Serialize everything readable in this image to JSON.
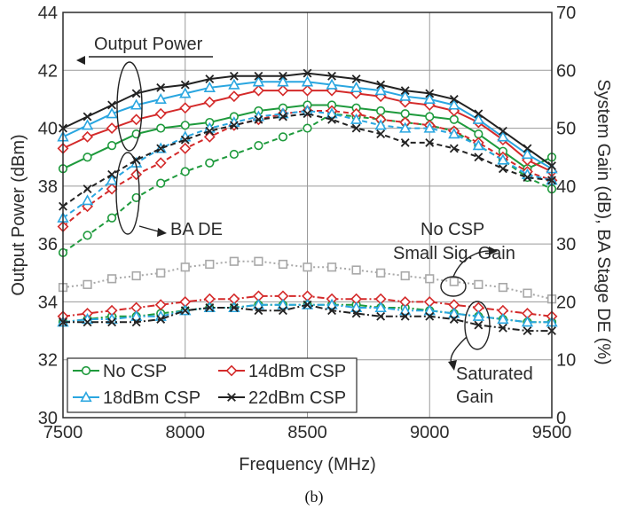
{
  "chart_data": {
    "type": "line",
    "caption": "(b)",
    "xlabel": "Frequency (MHz)",
    "ylabel_left": "Output Power (dBm)",
    "ylabel_right": "System Gain (dB), BA Stage  DE (%)",
    "xlim": [
      7500,
      9500
    ],
    "ylim_left": [
      30,
      44
    ],
    "ylim_right": [
      0,
      70
    ],
    "x_ticks": [
      7500,
      8000,
      8500,
      9000,
      9500
    ],
    "y_ticks_left": [
      30,
      32,
      34,
      36,
      38,
      40,
      42,
      44
    ],
    "y_ticks_right": [
      0,
      10,
      20,
      30,
      40,
      50,
      60,
      70
    ],
    "grid": true,
    "x": [
      7500,
      7600,
      7700,
      7800,
      7900,
      8000,
      8100,
      8200,
      8300,
      8400,
      8500,
      8600,
      8700,
      8800,
      8900,
      9000,
      9100,
      9200,
      9300,
      9400,
      9500
    ],
    "colors": {
      "no_csp": "#1e9a3c",
      "csp14": "#d42a2a",
      "csp18": "#2aa6e0",
      "csp22": "#222222",
      "small_sig": "#a8a8a8"
    },
    "series": [
      {
        "name": "No CSP",
        "group": "output_power",
        "axis": "left",
        "style": "solid",
        "color_key": "no_csp",
        "marker": "circle",
        "values": [
          38.6,
          39.0,
          39.4,
          39.8,
          40.0,
          40.1,
          40.2,
          40.4,
          40.6,
          40.7,
          40.8,
          40.8,
          40.7,
          40.6,
          40.5,
          40.4,
          40.3,
          39.8,
          39.2,
          38.6,
          39.0
        ]
      },
      {
        "name": "14dBm CSP",
        "group": "output_power",
        "axis": "left",
        "style": "solid",
        "color_key": "csp14",
        "marker": "diamond",
        "values": [
          39.3,
          39.7,
          40.0,
          40.3,
          40.5,
          40.7,
          40.9,
          41.1,
          41.3,
          41.3,
          41.3,
          41.3,
          41.2,
          41.1,
          40.9,
          40.8,
          40.6,
          40.2,
          39.6,
          38.9,
          38.5
        ]
      },
      {
        "name": "18dBm CSP",
        "group": "output_power",
        "axis": "left",
        "style": "solid",
        "color_key": "csp18",
        "marker": "triangle",
        "values": [
          39.7,
          40.1,
          40.5,
          40.8,
          41.0,
          41.2,
          41.4,
          41.5,
          41.6,
          41.6,
          41.6,
          41.5,
          41.4,
          41.3,
          41.1,
          41.0,
          40.8,
          40.3,
          39.7,
          39.1,
          38.6
        ]
      },
      {
        "name": "22dBm CSP",
        "group": "output_power",
        "axis": "left",
        "style": "solid",
        "color_key": "csp22",
        "marker": "x",
        "values": [
          40.0,
          40.4,
          40.8,
          41.2,
          41.4,
          41.5,
          41.7,
          41.8,
          41.8,
          41.8,
          41.9,
          41.8,
          41.7,
          41.5,
          41.3,
          41.2,
          41.0,
          40.5,
          39.9,
          39.3,
          38.7
        ]
      },
      {
        "name": "No CSP",
        "group": "ba_de",
        "axis": "right",
        "style": "dash",
        "color_key": "no_csp",
        "marker": "circle",
        "values": [
          28.5,
          31.5,
          34.5,
          38.0,
          40.5,
          42.5,
          44.0,
          45.5,
          47.0,
          48.5,
          50.0,
          52.5,
          52.0,
          51.5,
          51.0,
          50.5,
          49.5,
          47.0,
          44.5,
          41.5,
          39.5
        ]
      },
      {
        "name": "14dBm CSP",
        "group": "ba_de",
        "axis": "right",
        "style": "dash",
        "color_key": "csp14",
        "marker": "diamond",
        "values": [
          33.0,
          36.5,
          39.5,
          42.0,
          44.0,
          46.5,
          48.5,
          50.5,
          51.5,
          52.5,
          53.0,
          53.0,
          52.5,
          51.5,
          51.0,
          50.5,
          49.5,
          47.5,
          45.0,
          42.5,
          41.0
        ]
      },
      {
        "name": "18dBm CSP",
        "group": "ba_de",
        "axis": "right",
        "style": "dash",
        "color_key": "csp18",
        "marker": "triangle",
        "values": [
          34.5,
          37.5,
          41.0,
          44.0,
          46.5,
          48.5,
          50.0,
          51.0,
          52.0,
          52.5,
          53.0,
          52.5,
          51.5,
          50.5,
          50.0,
          50.0,
          49.0,
          47.0,
          44.5,
          42.0,
          41.0
        ]
      },
      {
        "name": "22dBm CSP",
        "group": "ba_de",
        "axis": "right",
        "style": "dash",
        "color_key": "csp22",
        "marker": "x",
        "values": [
          36.5,
          39.5,
          42.0,
          44.5,
          46.5,
          48.0,
          49.5,
          50.5,
          51.5,
          52.0,
          52.5,
          51.5,
          50.0,
          49.0,
          47.5,
          47.5,
          46.5,
          45.0,
          43.0,
          41.5,
          41.0
        ]
      },
      {
        "name": "No CSP",
        "group": "sat_gain",
        "axis": "right",
        "style": "dashdot",
        "color_key": "no_csp",
        "marker": "circle",
        "values": [
          16.5,
          17.0,
          17.5,
          17.5,
          18.0,
          18.5,
          19.0,
          19.0,
          19.5,
          19.5,
          19.5,
          19.5,
          19.5,
          19.0,
          19.0,
          18.5,
          18.0,
          17.5,
          17.0,
          16.5,
          16.5
        ]
      },
      {
        "name": "14dBm CSP",
        "group": "sat_gain",
        "axis": "right",
        "style": "dashdot",
        "color_key": "csp14",
        "marker": "diamond",
        "values": [
          17.5,
          18.0,
          18.5,
          19.0,
          19.5,
          20.0,
          20.5,
          20.5,
          21.0,
          21.0,
          21.0,
          20.5,
          20.5,
          20.5,
          20.0,
          20.0,
          19.5,
          19.0,
          18.5,
          18.0,
          17.5
        ]
      },
      {
        "name": "18dBm CSP",
        "group": "sat_gain",
        "axis": "right",
        "style": "dashdot",
        "color_key": "csp18",
        "marker": "triangle",
        "values": [
          16.5,
          17.0,
          17.0,
          17.5,
          17.5,
          18.5,
          19.0,
          19.0,
          19.5,
          19.5,
          19.5,
          19.5,
          19.0,
          19.0,
          18.5,
          18.5,
          18.0,
          17.5,
          17.0,
          16.5,
          16.5
        ]
      },
      {
        "name": "22dBm CSP",
        "group": "sat_gain",
        "axis": "right",
        "style": "dashdot",
        "color_key": "csp22",
        "marker": "x",
        "values": [
          16.5,
          16.5,
          16.5,
          16.5,
          17.0,
          18.5,
          19.0,
          19.0,
          18.5,
          18.5,
          19.5,
          18.5,
          18.0,
          17.5,
          17.5,
          17.5,
          17.0,
          16.0,
          15.5,
          15.0,
          15.0
        ]
      },
      {
        "name": "No CSP Small Sig. Gain",
        "group": "small_sig",
        "axis": "right",
        "style": "dot",
        "color_key": "small_sig",
        "marker": "square",
        "values": [
          22.5,
          23.0,
          24.0,
          24.5,
          25.0,
          26.0,
          26.5,
          27.0,
          27.0,
          26.5,
          26.0,
          26.0,
          25.5,
          25.0,
          24.5,
          24.0,
          23.5,
          23.0,
          22.5,
          21.5,
          20.5
        ]
      }
    ],
    "legend": {
      "placement": "bottom-left",
      "entries": [
        {
          "label": "No CSP",
          "color_key": "no_csp",
          "marker": "circle"
        },
        {
          "label": "14dBm CSP",
          "color_key": "csp14",
          "marker": "diamond"
        },
        {
          "label": "18dBm CSP",
          "color_key": "csp18",
          "marker": "triangle"
        },
        {
          "label": "22dBm CSP",
          "color_key": "csp22",
          "marker": "x"
        }
      ]
    },
    "annotations": {
      "output_power": "Output Power",
      "ba_de": "BA DE",
      "small_sig_line1": "No CSP",
      "small_sig_line2": "Small Sig. Gain",
      "saturated_line1": "Saturated",
      "saturated_line2": "Gain"
    }
  }
}
